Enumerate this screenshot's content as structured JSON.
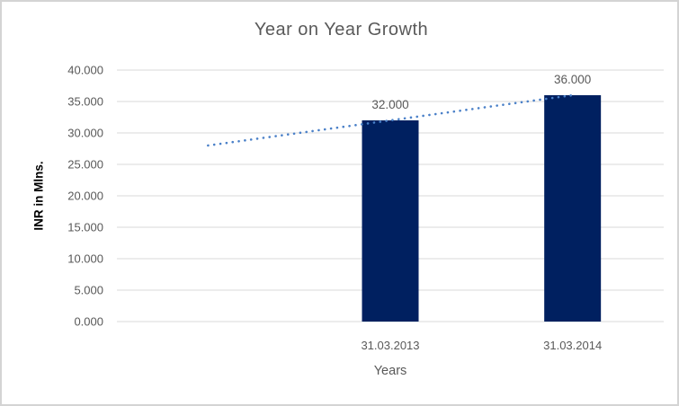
{
  "chart_data": {
    "type": "bar",
    "title": "Year on Year Growth",
    "xlabel": "Years",
    "ylabel": "INR in Mlns.",
    "categories": [
      "31.03.2013",
      "31.03.2014"
    ],
    "values": [
      32,
      36
    ],
    "data_labels": [
      "32.000",
      "36.000"
    ],
    "ylim": [
      0,
      40
    ],
    "ytick_step": 5,
    "ytick_labels": [
      "0.000",
      "5.000",
      "10.000",
      "15.000",
      "20.000",
      "25.000",
      "30.000",
      "35.000",
      "40.000"
    ],
    "grid": true,
    "legend": "none",
    "trendline": {
      "type": "linear",
      "style": "dotted",
      "start_value": 28,
      "end_value": 36
    },
    "colors": {
      "bar": "#002060",
      "trendline": "#4a80c8",
      "gridline": "#d9d9d9",
      "text": "#595959",
      "axis_title_text": "#000000",
      "background": "#ffffff",
      "frame_border": "#d4d4d4"
    }
  }
}
